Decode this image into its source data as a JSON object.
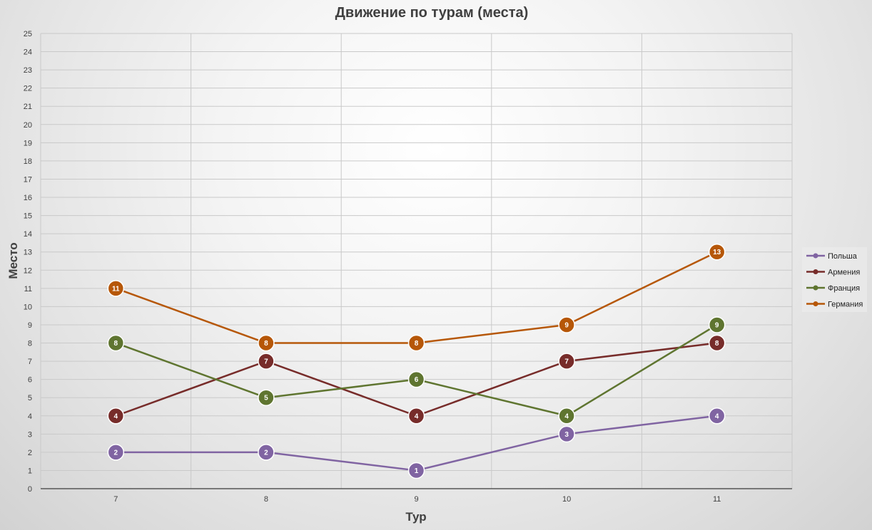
{
  "chart_data": {
    "type": "line",
    "title": "Движение по турам (места)",
    "xlabel": "Тур",
    "ylabel": "Место",
    "categories": [
      "7",
      "8",
      "9",
      "10",
      "11"
    ],
    "ylim": [
      0,
      25
    ],
    "yticks": [
      "0",
      "1",
      "2",
      "3",
      "4",
      "5",
      "6",
      "7",
      "8",
      "9",
      "10",
      "11",
      "12",
      "13",
      "14",
      "15",
      "16",
      "17",
      "18",
      "19",
      "20",
      "21",
      "22",
      "23",
      "24",
      "25"
    ],
    "grid": true,
    "legend_position": "right",
    "series": [
      {
        "name": "Польша",
        "color": "#8064a2",
        "values": [
          2,
          2,
          1,
          3,
          4
        ]
      },
      {
        "name": "Армения",
        "color": "#772c2a",
        "values": [
          4,
          7,
          4,
          7,
          8
        ]
      },
      {
        "name": "Франция",
        "color": "#5f7530",
        "values": [
          8,
          5,
          6,
          4,
          9
        ]
      },
      {
        "name": "Германия",
        "color": "#b65708",
        "values": [
          11,
          8,
          8,
          9,
          13
        ]
      }
    ]
  }
}
